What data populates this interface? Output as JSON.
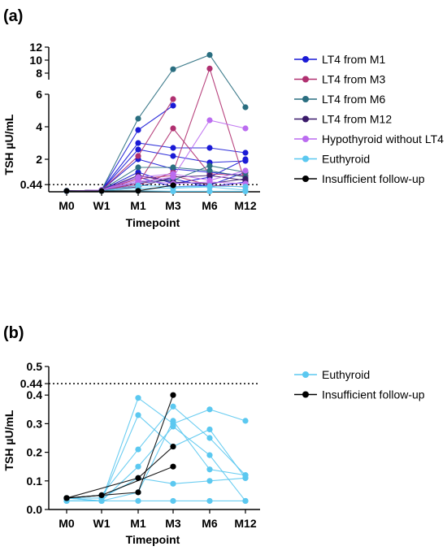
{
  "chart_data": [
    {
      "panel_label": "(a)",
      "type": "line",
      "xlabel": "Timepoint",
      "ylabel": "TSH µU/mL",
      "categories": [
        "M0",
        "W1",
        "M1",
        "M3",
        "M6",
        "M12"
      ],
      "yaxis_segments": [
        {
          "range": [
            0,
            6
          ],
          "ticks": [
            "0.44",
            "2",
            "4",
            "6"
          ],
          "tick_values": [
            0.44,
            2,
            4,
            6
          ]
        },
        {
          "range": [
            7,
            12
          ],
          "ticks": [
            "8",
            "10",
            "12"
          ],
          "tick_values": [
            8,
            10,
            12
          ]
        }
      ],
      "reference_line": {
        "value": 0.44,
        "style": "dotted"
      },
      "legend_position": "right",
      "series": [
        {
          "name": "LT4 from M1",
          "color": "#1a1ad6",
          "lines": [
            [
              0.05,
              0.1,
              3.8,
              5.3,
              null,
              null
            ],
            [
              0.05,
              0.1,
              3.0,
              2.7,
              2.7,
              2.4
            ],
            [
              0.05,
              0.1,
              2.6,
              2.2,
              1.8,
              1.9
            ],
            [
              0.05,
              0.1,
              2.0,
              1.4,
              1.2,
              1.0
            ],
            [
              0.05,
              0.1,
              1.2,
              0.5,
              0.9,
              2.0
            ],
            [
              0.05,
              0.1,
              0.9,
              0.3,
              0.4,
              1.2
            ],
            [
              0.05,
              0.1,
              0.5,
              0.8,
              0.3,
              0.6
            ]
          ]
        },
        {
          "name": "LT4 from M3",
          "color": "#b03070",
          "lines": [
            [
              0.05,
              0.1,
              2.2,
              5.7,
              null,
              null
            ],
            [
              0.05,
              0.1,
              0.5,
              3.9,
              1.1,
              1.0
            ],
            [
              0.05,
              0.1,
              0.4,
              1.2,
              8.7,
              0.5
            ],
            [
              0.05,
              0.1,
              0.8,
              1.0,
              0.4,
              0.3
            ]
          ]
        },
        {
          "name": "LT4 from M6",
          "color": "#2a6e80",
          "lines": [
            [
              0.05,
              0.1,
              4.5,
              8.6,
              10.8,
              5.2
            ],
            [
              0.05,
              0.1,
              1.5,
              1.5,
              1.3,
              0.9
            ],
            [
              0.05,
              0.1,
              0.6,
              0.7,
              1.6,
              1.2
            ]
          ]
        },
        {
          "name": "LT4 from M12",
          "color": "#3a1a6a",
          "lines": [
            [
              0.05,
              0.1,
              1.0,
              0.6,
              0.5,
              0.8
            ],
            [
              0.05,
              0.1,
              0.3,
              0.9,
              1.0,
              0.7
            ]
          ]
        },
        {
          "name": "Hypothyroid without LT4",
          "color": "#bb6cf0",
          "lines": [
            [
              0.05,
              0.1,
              0.6,
              0.9,
              4.4,
              3.9
            ],
            [
              0.05,
              0.1,
              0.9,
              1.1,
              0.7,
              1.3
            ],
            [
              0.05,
              0.1,
              0.7,
              0.5,
              0.6,
              0.5
            ]
          ]
        },
        {
          "name": "Euthyroid",
          "color": "#5bc8f0",
          "lines": [
            [
              0.05,
              0.05,
              0.39,
              0.3,
              0.35,
              0.31
            ],
            [
              0.05,
              0.05,
              0.21,
              0.22,
              0.3,
              0.1
            ],
            [
              0.05,
              0.05,
              0.06,
              0.03,
              0.03,
              0.03
            ]
          ]
        },
        {
          "name": "Insufficient follow-up",
          "color": "#000000",
          "lines": [
            [
              0.05,
              0.05,
              0.06,
              0.4,
              null,
              null
            ]
          ]
        }
      ]
    },
    {
      "panel_label": "(b)",
      "type": "line",
      "xlabel": "Timepoint",
      "ylabel": "TSH µU/mL",
      "categories": [
        "M0",
        "W1",
        "M1",
        "M3",
        "M6",
        "M12"
      ],
      "ylim": [
        0,
        0.5
      ],
      "yticks": [
        "0.0",
        "0.1",
        "0.2",
        "0.3",
        "0.4",
        "0.44",
        "0.5"
      ],
      "ytick_values": [
        0,
        0.1,
        0.2,
        0.3,
        0.4,
        0.44,
        0.5
      ],
      "reference_line": {
        "value": 0.44,
        "style": "dotted"
      },
      "legend_position": "right",
      "series": [
        {
          "name": "Euthyroid",
          "color": "#5bc8f0",
          "lines": [
            [
              0.04,
              0.03,
              0.39,
              0.3,
              0.35,
              0.31
            ],
            [
              0.03,
              0.03,
              0.33,
              0.22,
              0.28,
              0.11
            ],
            [
              0.04,
              0.05,
              0.21,
              0.36,
              0.25,
              0.12
            ],
            [
              0.03,
              0.03,
              0.15,
              0.29,
              0.19,
              0.03
            ],
            [
              0.04,
              0.04,
              0.11,
              0.09,
              0.1,
              0.11
            ],
            [
              0.03,
              0.03,
              0.06,
              0.31,
              0.14,
              0.12
            ],
            [
              0.04,
              0.03,
              0.03,
              0.03,
              0.03,
              0.03
            ]
          ]
        },
        {
          "name": "Insufficient follow-up",
          "color": "#000000",
          "lines": [
            [
              0.04,
              null,
              0.06,
              0.4,
              null,
              null
            ],
            [
              0.04,
              null,
              0.11,
              0.22,
              null,
              null
            ],
            [
              0.04,
              0.05,
              null,
              0.15,
              null,
              null
            ]
          ]
        }
      ]
    }
  ]
}
